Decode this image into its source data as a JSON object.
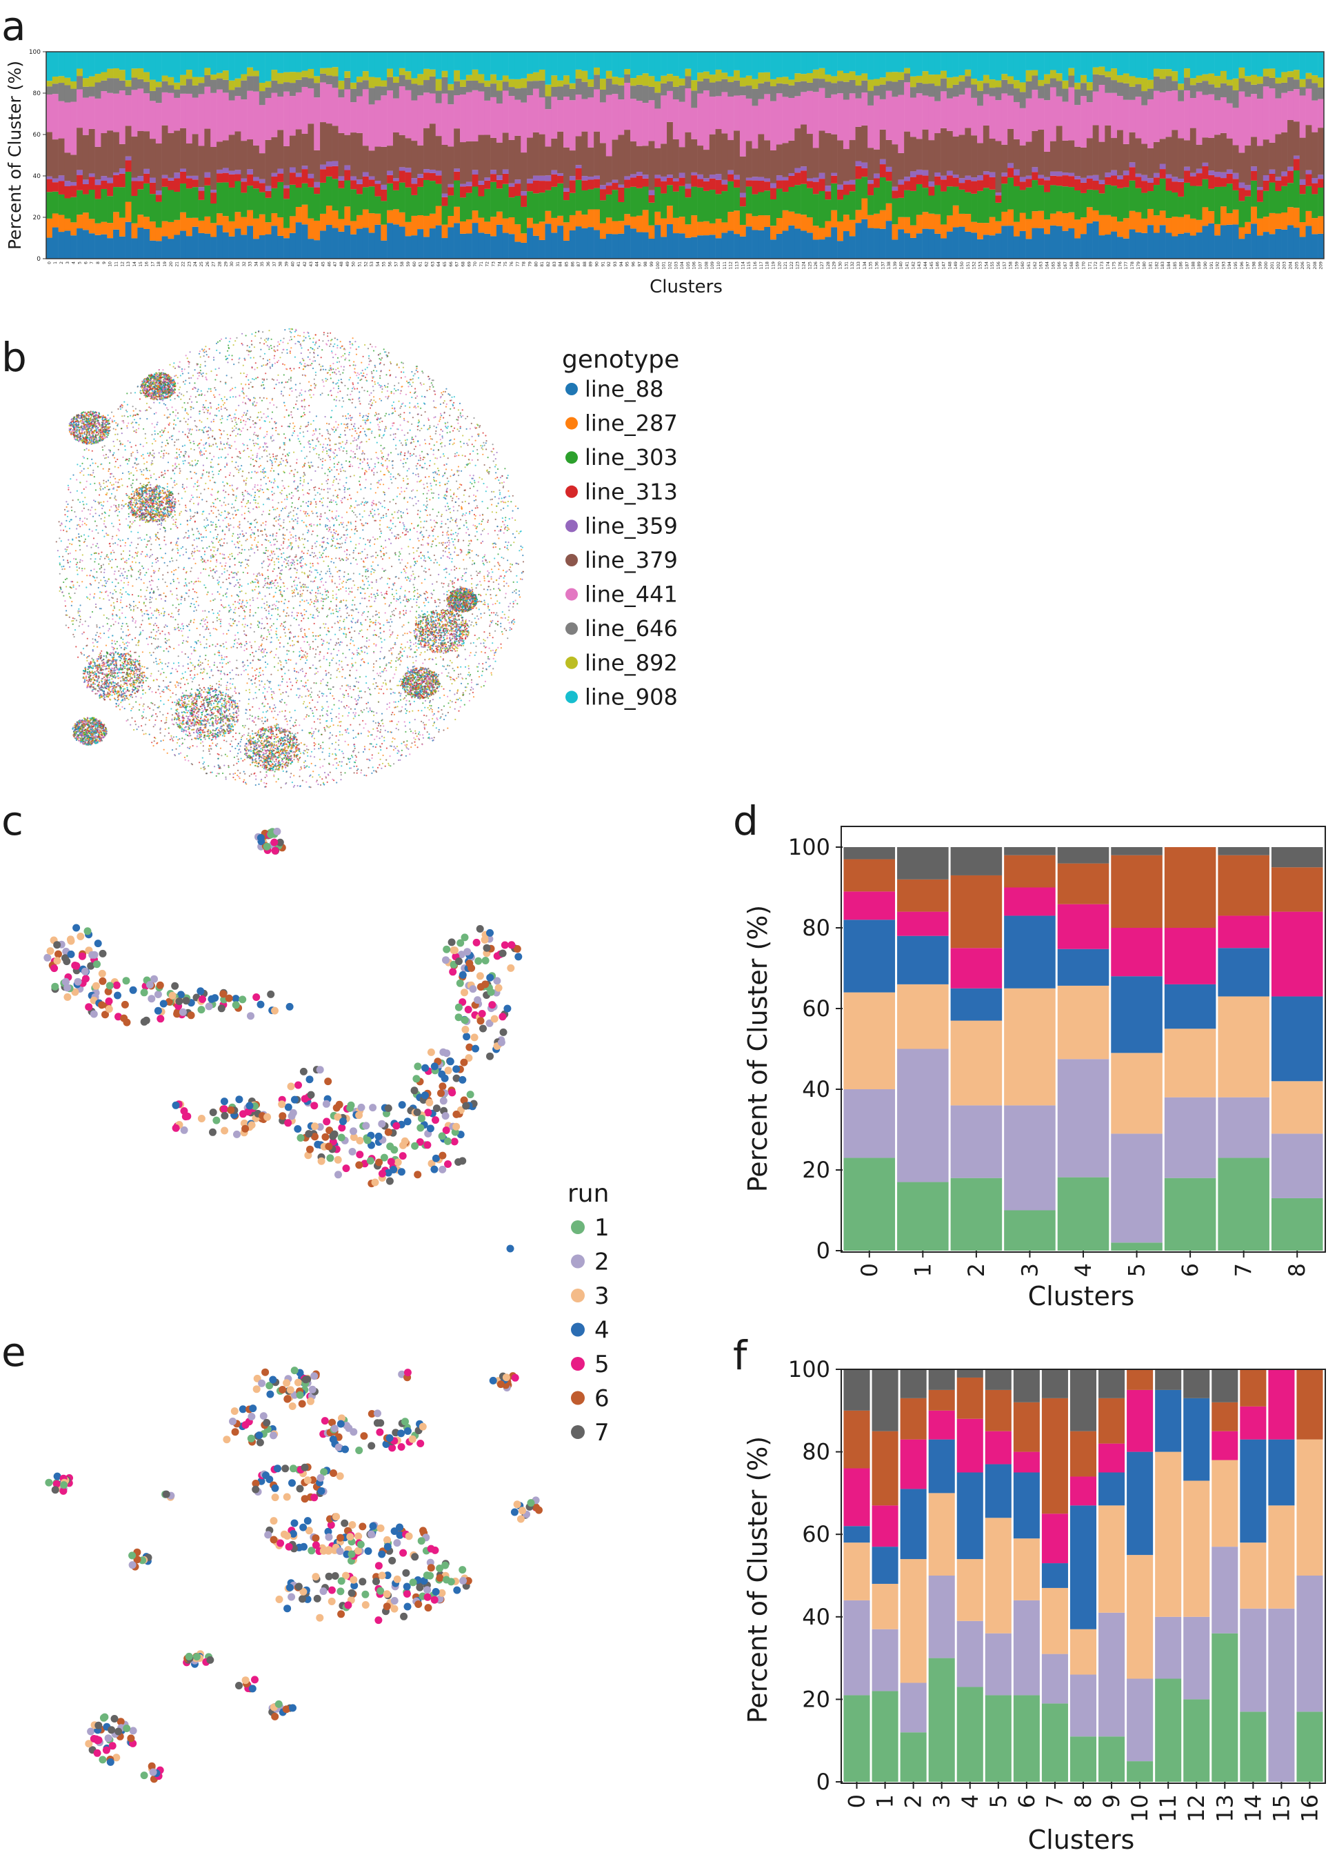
{
  "panels": {
    "a": {
      "letter": "a"
    },
    "b": {
      "letter": "b",
      "legend_title": "genotype"
    },
    "c": {
      "letter": "c",
      "legend_title": "run"
    },
    "d": {
      "letter": "d"
    },
    "e": {
      "letter": "e"
    },
    "f": {
      "letter": "f"
    }
  },
  "chart_data": [
    {
      "id": "a",
      "type": "bar",
      "stacked": true,
      "title": "",
      "xlabel": "Clusters",
      "ylabel": "Percent of Cluster (%)",
      "ylim": [
        0,
        100
      ],
      "yticks": [
        0,
        20,
        40,
        60,
        80,
        100
      ],
      "n_categories": 210,
      "categories_range": [
        0,
        209
      ],
      "series_names": [
        "line_88",
        "line_287",
        "line_303",
        "line_313",
        "line_359",
        "line_379",
        "line_441",
        "line_646",
        "line_892",
        "line_908"
      ],
      "typical_percent": [
        13,
        7.5,
        12.5,
        5,
        2,
        18,
        21,
        6,
        4,
        11
      ]
    },
    {
      "id": "b",
      "type": "scatter",
      "title": "",
      "legend_title": "genotype",
      "legend": [
        "line_88",
        "line_287",
        "line_303",
        "line_313",
        "line_359",
        "line_379",
        "line_441",
        "line_646",
        "line_892",
        "line_908"
      ]
    },
    {
      "id": "c",
      "type": "scatter",
      "title": "",
      "legend_title": "run",
      "legend": [
        "1",
        "2",
        "3",
        "4",
        "5",
        "6",
        "7"
      ]
    },
    {
      "id": "d",
      "type": "bar",
      "stacked": true,
      "xlabel": "Clusters",
      "ylabel": "Percent of Cluster (%)",
      "ylim": [
        0,
        100
      ],
      "yticks": [
        0,
        20,
        40,
        60,
        80,
        100
      ],
      "categories": [
        "0",
        "1",
        "2",
        "3",
        "4",
        "5",
        "6",
        "7",
        "8"
      ],
      "series": [
        {
          "name": "1",
          "values": [
            23,
            17,
            18,
            10,
            18,
            2,
            18,
            23,
            13
          ]
        },
        {
          "name": "2",
          "values": [
            17,
            33,
            18,
            26,
            29,
            27,
            20,
            15,
            16
          ]
        },
        {
          "name": "3",
          "values": [
            24,
            16,
            21,
            29,
            18,
            20,
            17,
            25,
            13
          ]
        },
        {
          "name": "4",
          "values": [
            18,
            12,
            8,
            18,
            9,
            19,
            11,
            12,
            21
          ]
        },
        {
          "name": "5",
          "values": [
            7,
            6,
            10,
            7,
            11,
            12,
            14,
            8,
            21
          ]
        },
        {
          "name": "6",
          "values": [
            8,
            8,
            18,
            8,
            10,
            18,
            20,
            15,
            11
          ]
        },
        {
          "name": "7",
          "values": [
            3,
            8,
            7,
            2,
            4,
            2,
            0,
            2,
            5
          ]
        }
      ]
    },
    {
      "id": "e",
      "type": "scatter",
      "title": "",
      "legend": [
        "1",
        "2",
        "3",
        "4",
        "5",
        "6",
        "7"
      ]
    },
    {
      "id": "f",
      "type": "bar",
      "stacked": true,
      "xlabel": "Clusters",
      "ylabel": "Percent of Cluster (%)",
      "ylim": [
        0,
        100
      ],
      "yticks": [
        0,
        20,
        40,
        60,
        80,
        100
      ],
      "categories": [
        "0",
        "1",
        "2",
        "3",
        "4",
        "5",
        "6",
        "7",
        "8",
        "9",
        "10",
        "11",
        "12",
        "13",
        "14",
        "15",
        "16"
      ],
      "series": [
        {
          "name": "1",
          "values": [
            21,
            22,
            12,
            30,
            23,
            21,
            21,
            19,
            11,
            11,
            5,
            25,
            20,
            36,
            17,
            0,
            17
          ]
        },
        {
          "name": "2",
          "values": [
            23,
            15,
            12,
            20,
            16,
            15,
            23,
            12,
            15,
            30,
            20,
            15,
            20,
            21,
            25,
            42,
            33
          ]
        },
        {
          "name": "3",
          "values": [
            14,
            11,
            30,
            20,
            15,
            28,
            15,
            16,
            11,
            26,
            30,
            40,
            33,
            21,
            16,
            25,
            33
          ]
        },
        {
          "name": "4",
          "values": [
            4,
            9,
            17,
            13,
            21,
            13,
            16,
            6,
            30,
            8,
            25,
            15,
            20,
            0,
            25,
            16,
            0
          ]
        },
        {
          "name": "5",
          "values": [
            14,
            10,
            12,
            7,
            13,
            8,
            5,
            12,
            7,
            7,
            15,
            0,
            0,
            7,
            8,
            17,
            0
          ]
        },
        {
          "name": "6",
          "values": [
            14,
            18,
            10,
            5,
            10,
            10,
            12,
            28,
            11,
            11,
            5,
            0,
            0,
            7,
            9,
            0,
            17
          ]
        },
        {
          "name": "7",
          "values": [
            10,
            15,
            7,
            5,
            2,
            5,
            8,
            7,
            15,
            7,
            0,
            5,
            7,
            8,
            0,
            0,
            0
          ]
        }
      ]
    }
  ],
  "colors": {
    "genotype": [
      "#1f77b4",
      "#ff7f0e",
      "#2ca02c",
      "#d62728",
      "#9467bd",
      "#8c564b",
      "#e377c2",
      "#7f7f7f",
      "#bcbd22",
      "#17becf"
    ],
    "run": [
      "#6db57b",
      "#aca3cb",
      "#f4bb88",
      "#2b6db3",
      "#e81b85",
      "#c05c2e",
      "#636363"
    ]
  }
}
